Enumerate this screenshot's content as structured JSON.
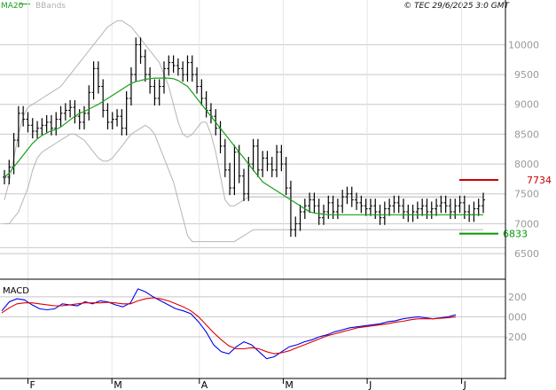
{
  "header": {
    "legend": [
      {
        "label": "MA20",
        "color": "#1a9f1a"
      },
      {
        "label": "BBands",
        "color": "#b0b0b0"
      }
    ],
    "copyright": "© TEC 29/6/2025 3:0 GMT"
  },
  "chart_data": [
    {
      "type": "ohlc",
      "title": "",
      "ylim": [
        6100,
        10600
      ],
      "yticks": [
        {
          "value": 10000,
          "label": "10000"
        },
        {
          "value": 9500,
          "label": "9500"
        },
        {
          "value": 9000,
          "label": "9000"
        },
        {
          "value": 8500,
          "label": "8500"
        },
        {
          "value": 8000,
          "label": "8000"
        },
        {
          "value": 7500,
          "label": "7500"
        },
        {
          "value": 7000,
          "label": "7000"
        },
        {
          "value": 6500,
          "label": "6500"
        }
      ],
      "grid": true,
      "x_months": [
        {
          "day": 8,
          "label": "F"
        },
        {
          "day": 32,
          "label": "M"
        },
        {
          "day": 57,
          "label": "A"
        },
        {
          "day": 81,
          "label": "M"
        },
        {
          "day": 105,
          "label": "J"
        },
        {
          "day": 132,
          "label": "J"
        }
      ],
      "x_range": [
        0,
        142
      ],
      "closes": [
        7780,
        7950,
        8400,
        8850,
        8750,
        8650,
        8550,
        8600,
        8650,
        8700,
        8600,
        8750,
        8850,
        8900,
        8950,
        8800,
        8700,
        8850,
        9200,
        9600,
        9300,
        8900,
        8700,
        8750,
        8800,
        8600,
        9100,
        9500,
        10000,
        9800,
        9500,
        9300,
        9100,
        9300,
        9600,
        9700,
        9650,
        9600,
        9500,
        9700,
        9500,
        9300,
        9100,
        8900,
        8800,
        8600,
        8300,
        7900,
        7600,
        8200,
        7800,
        7500,
        8000,
        8300,
        7900,
        8100,
        8000,
        7900,
        8200,
        8000,
        7600,
        6900,
        7000,
        7200,
        7300,
        7400,
        7300,
        7100,
        7200,
        7350,
        7200,
        7300,
        7450,
        7500,
        7400,
        7350,
        7300,
        7250,
        7300,
        7200,
        7100,
        7250,
        7300,
        7350,
        7300,
        7200,
        7150,
        7200,
        7250,
        7300,
        7200,
        7250,
        7300,
        7350,
        7300,
        7200,
        7300,
        7350,
        7200,
        7150,
        7250,
        7300,
        7400
      ],
      "ma20": [
        7780,
        7850,
        7950,
        8050,
        8150,
        8250,
        8350,
        8420,
        8480,
        8520,
        8560,
        8580,
        8620,
        8680,
        8740,
        8800,
        8850,
        8880,
        8920,
        8960,
        9000,
        9050,
        9100,
        9150,
        9200,
        9250,
        9300,
        9350,
        9380,
        9400,
        9420,
        9430,
        9440,
        9440,
        9440,
        9440,
        9430,
        9400,
        9350,
        9300,
        9200,
        9100,
        9000,
        8900,
        8800,
        8700,
        8600,
        8500,
        8400,
        8300,
        8200,
        8100,
        8000,
        7900,
        7800,
        7700,
        7650,
        7600,
        7550,
        7500,
        7450,
        7400,
        7350,
        7300,
        7250,
        7200,
        7180,
        7170,
        7160,
        7150,
        7150,
        7150,
        7150,
        7150,
        7150,
        7150,
        7150,
        7150,
        7150,
        7150,
        7150,
        7150,
        7150,
        7150,
        7150,
        7150,
        7150,
        7150,
        7150,
        7150,
        7150,
        7150,
        7150,
        7150,
        7150,
        7150,
        7150,
        7150,
        7150,
        7150,
        7150,
        7150,
        7150
      ],
      "bb_upper": [
        7400,
        7700,
        8100,
        8500,
        8800,
        8950,
        9000,
        9050,
        9100,
        9150,
        9200,
        9250,
        9300,
        9400,
        9500,
        9600,
        9700,
        9800,
        9900,
        10000,
        10100,
        10200,
        10300,
        10350,
        10400,
        10400,
        10350,
        10300,
        10200,
        10100,
        10000,
        9900,
        9800,
        9700,
        9500,
        9300,
        9000,
        8700,
        8500,
        8450,
        8500,
        8600,
        8700,
        8700,
        8500,
        8200,
        7800,
        7400,
        7300,
        7300,
        7350,
        7400,
        7450,
        7450,
        7450,
        7450,
        7450,
        7450,
        7450,
        7450,
        7450,
        7450,
        7450,
        7450,
        7450,
        7450,
        7450,
        7450,
        7450,
        7450,
        7450,
        7450,
        7450,
        7450,
        7450,
        7450,
        7450,
        7450,
        7450,
        7450,
        7450,
        7450,
        7450,
        7450,
        7450,
        7450,
        7450,
        7450,
        7450,
        7450,
        7450,
        7450,
        7450,
        7450,
        7450,
        7450,
        7450,
        7450,
        7450,
        7450,
        7450,
        7450,
        7450
      ],
      "bb_lower": [
        7000,
        7000,
        7100,
        7200,
        7400,
        7600,
        7900,
        8100,
        8200,
        8250,
        8300,
        8350,
        8400,
        8450,
        8500,
        8500,
        8450,
        8400,
        8300,
        8200,
        8100,
        8050,
        8050,
        8100,
        8200,
        8300,
        8400,
        8500,
        8550,
        8600,
        8650,
        8600,
        8500,
        8300,
        8100,
        7900,
        7700,
        7400,
        7100,
        6800,
        6700,
        6700,
        6700,
        6700,
        6700,
        6700,
        6700,
        6700,
        6700,
        6700,
        6750,
        6800,
        6850,
        6900,
        6900,
        6900,
        6900,
        6900,
        6900,
        6900,
        6900,
        6900,
        6900,
        6900,
        6900,
        6900,
        6900,
        6900,
        6900,
        6900,
        6900,
        6900,
        6900,
        6900,
        6900,
        6900,
        6900,
        6900,
        6900,
        6900,
        6900,
        6900,
        6900,
        6900,
        6900,
        6900,
        6900,
        6900,
        6900,
        6900,
        6900,
        6900,
        6900,
        6900,
        6900,
        6900,
        6900,
        6900,
        6900,
        6900,
        6900,
        6900,
        6900
      ],
      "resistance": {
        "value": 7734,
        "label": "7734",
        "color": "#cc0000"
      },
      "support": {
        "value": 6833,
        "label": "6833",
        "color": "#009900"
      }
    },
    {
      "type": "line",
      "title": "MACD",
      "ylim": [
        -600,
        350
      ],
      "yticks": [
        {
          "value": 200,
          "label": "200"
        },
        {
          "value": 0,
          "label": "000"
        },
        {
          "value": -200,
          "label": "-200"
        }
      ],
      "series": [
        {
          "color": "#0000ee",
          "values": [
            60,
            150,
            180,
            170,
            120,
            80,
            70,
            80,
            130,
            120,
            110,
            150,
            130,
            160,
            150,
            120,
            100,
            140,
            280,
            250,
            200,
            160,
            120,
            80,
            60,
            30,
            -50,
            -150,
            -280,
            -350,
            -370,
            -300,
            -250,
            -280,
            -350,
            -420,
            -400,
            -350,
            -300,
            -280,
            -250,
            -230,
            -200,
            -180,
            -150,
            -130,
            -110,
            -100,
            -90,
            -80,
            -70,
            -50,
            -40,
            -20,
            -10,
            0,
            -10,
            -20,
            -10,
            0,
            20
          ]
        },
        {
          "color": "#dd0000",
          "values": [
            40,
            90,
            130,
            140,
            140,
            130,
            120,
            110,
            110,
            120,
            130,
            140,
            140,
            140,
            145,
            140,
            130,
            130,
            160,
            180,
            190,
            180,
            160,
            130,
            100,
            60,
            0,
            -80,
            -160,
            -230,
            -290,
            -320,
            -320,
            -310,
            -320,
            -350,
            -370,
            -360,
            -340,
            -310,
            -280,
            -250,
            -220,
            -190,
            -170,
            -150,
            -130,
            -110,
            -100,
            -90,
            -80,
            -70,
            -55,
            -45,
            -30,
            -20,
            -20,
            -20,
            -15,
            -10,
            0
          ]
        }
      ]
    }
  ]
}
